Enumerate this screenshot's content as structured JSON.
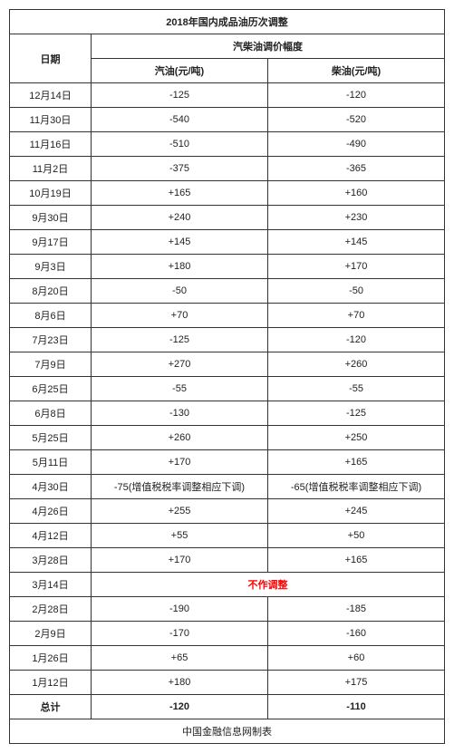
{
  "title": "2018年国内成品油历次调整",
  "header": {
    "date": "日期",
    "group": "汽柴油调价幅度",
    "gasoline": "汽油(元/吨)",
    "diesel": "柴油(元/吨)"
  },
  "rows": [
    {
      "date": "12月14日",
      "g": "-125",
      "d": "-120"
    },
    {
      "date": "11月30日",
      "g": "-540",
      "d": "-520"
    },
    {
      "date": "11月16日",
      "g": "-510",
      "d": "-490"
    },
    {
      "date": "11月2日",
      "g": "-375",
      "d": "-365"
    },
    {
      "date": "10月19日",
      "g": "+165",
      "d": "+160"
    },
    {
      "date": "9月30日",
      "g": "+240",
      "d": "+230"
    },
    {
      "date": "9月17日",
      "g": "+145",
      "d": "+145"
    },
    {
      "date": "9月3日",
      "g": "+180",
      "d": "+170"
    },
    {
      "date": "8月20日",
      "g": "-50",
      "d": "-50"
    },
    {
      "date": "8月6日",
      "g": "+70",
      "d": "+70"
    },
    {
      "date": "7月23日",
      "g": "-125",
      "d": "-120"
    },
    {
      "date": "7月9日",
      "g": "+270",
      "d": "+260"
    },
    {
      "date": "6月25日",
      "g": "-55",
      "d": "-55"
    },
    {
      "date": "6月8日",
      "g": "-130",
      "d": "-125"
    },
    {
      "date": "5月25日",
      "g": "+260",
      "d": "+250"
    },
    {
      "date": "5月11日",
      "g": "+170",
      "d": "+165"
    },
    {
      "date": "4月30日",
      "g": "-75(增值税税率调整相应下调)",
      "d": "-65(增值税税率调整相应下调)"
    },
    {
      "date": "4月26日",
      "g": "+255",
      "d": "+245"
    },
    {
      "date": "4月12日",
      "g": "+55",
      "d": "+50"
    },
    {
      "date": "3月28日",
      "g": "+170",
      "d": "+165"
    },
    {
      "date": "3月14日",
      "merged": "不作调整",
      "red": true
    },
    {
      "date": "2月28日",
      "g": "-190",
      "d": "-185"
    },
    {
      "date": "2月9日",
      "g": "-170",
      "d": "-160"
    },
    {
      "date": "1月26日",
      "g": "+65",
      "d": "+60"
    },
    {
      "date": "1月12日",
      "g": "+180",
      "d": "+175"
    }
  ],
  "total": {
    "label": "总计",
    "g": "-120",
    "d": "-110"
  },
  "footer": "中国金融信息网制表"
}
